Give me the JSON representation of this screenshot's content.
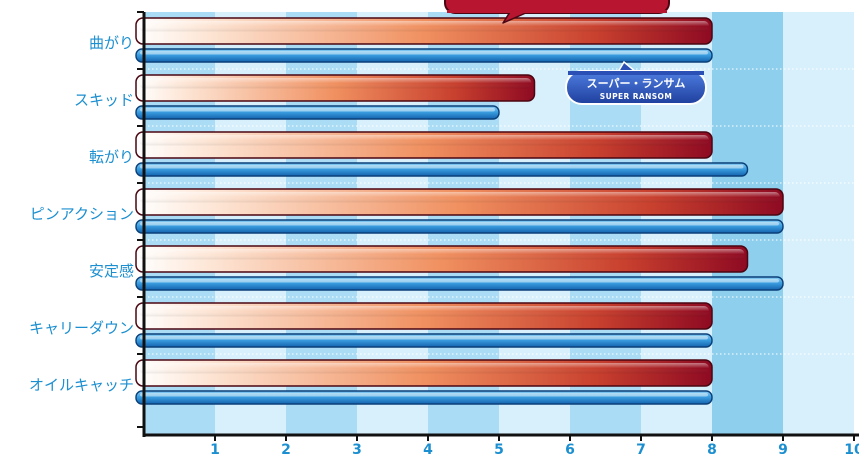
{
  "chart_data": {
    "type": "bar",
    "orientation": "horizontal",
    "categories": [
      "曲がり",
      "スキッド",
      "転がり",
      "ピンアクション",
      "安定感",
      "キャリーダウン",
      "オイルキャッチ"
    ],
    "series": [
      {
        "values": [
          8,
          5.5,
          8,
          9,
          8.5,
          8,
          8
        ],
        "color": "#9a0f25"
      },
      {
        "name": "スーパー・ランサム",
        "name_en": "SUPER RANSOM",
        "values": [
          8,
          5,
          8.5,
          9,
          9,
          8,
          8
        ],
        "color": "#1e80cc"
      }
    ],
    "x_ticks": [
      1,
      2,
      3,
      4,
      5,
      6,
      7,
      8,
      9,
      10
    ],
    "xlim": [
      0,
      10
    ],
    "band_colors": {
      "light": "#d8f0fc",
      "dark": "#aadcf6",
      "highlight": "#8ecfee"
    }
  }
}
